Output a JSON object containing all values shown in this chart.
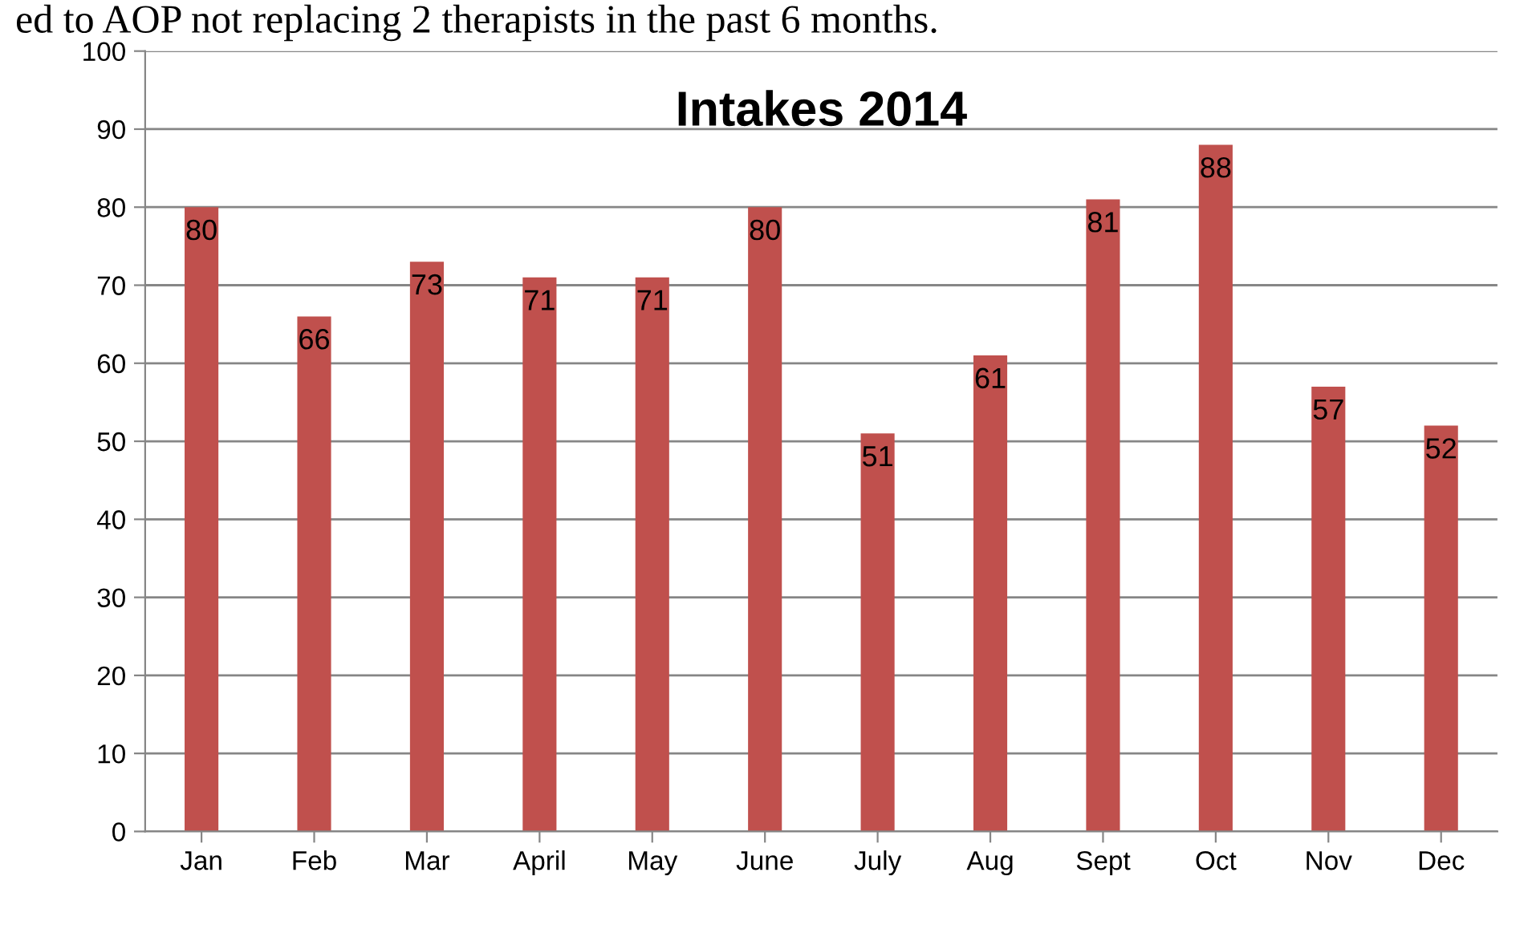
{
  "chart_data": {
    "type": "bar",
    "title": "Intakes 2014",
    "annotations": [
      "ed to AOP not replacing 2 therapists in the past 6 months."
    ],
    "categories": [
      "Jan",
      "Feb",
      "Mar",
      "April",
      "May",
      "June",
      "July",
      "Aug",
      "Sept",
      "Oct",
      "Nov",
      "Dec"
    ],
    "values": [
      80,
      66,
      73,
      71,
      71,
      80,
      51,
      61,
      81,
      88,
      57,
      52
    ],
    "color": "#c0504d",
    "ylim": [
      0,
      100
    ],
    "yticks": [
      0,
      10,
      20,
      30,
      40,
      50,
      60,
      70,
      80,
      90,
      100
    ],
    "grid": "y",
    "data_labels": true
  }
}
